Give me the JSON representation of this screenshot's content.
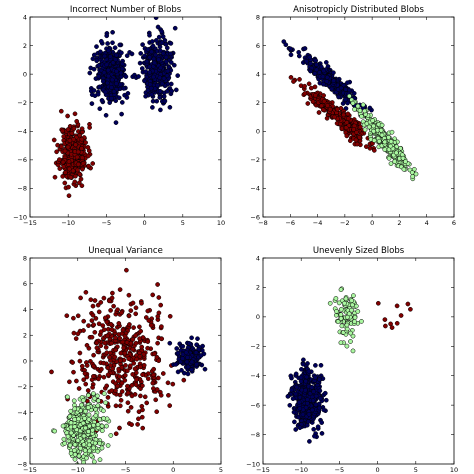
{
  "figure": {
    "background": "#ffffff"
  },
  "colors": {
    "red": "#800000",
    "blue": "#00005a",
    "green": "#aaf7a0",
    "edge": "#000000"
  },
  "chart_data": [
    {
      "type": "scatter",
      "title": "Incorrect Number of Blobs",
      "xlim": [
        -15,
        10
      ],
      "ylim": [
        -10,
        4
      ],
      "xticks": [
        -15,
        -10,
        -5,
        0,
        5,
        10
      ],
      "yticks": [
        -10,
        -8,
        -6,
        -4,
        -2,
        0,
        2,
        4
      ],
      "clusters": [
        {
          "color": "red",
          "count": 330,
          "center": [
            -9.3,
            -5.5
          ],
          "spread": [
            0.9,
            1.0
          ],
          "seed": 11
        },
        {
          "color": "blue",
          "count": 330,
          "center": [
            -4.4,
            0.0
          ],
          "spread": [
            1.0,
            1.1
          ],
          "seed": 12
        },
        {
          "color": "blue",
          "count": 330,
          "center": [
            1.8,
            0.3
          ],
          "spread": [
            1.0,
            1.1
          ],
          "seed": 13
        }
      ]
    },
    {
      "type": "scatter",
      "title": "Anisotropicly Distributed Blobs",
      "xlim": [
        -8,
        6
      ],
      "ylim": [
        -6,
        8
      ],
      "xticks": [
        -8,
        -6,
        -4,
        -2,
        0,
        2,
        4,
        6
      ],
      "yticks": [
        -6,
        -4,
        -2,
        0,
        2,
        4,
        6,
        8
      ],
      "clusters": [
        {
          "color": "blue",
          "count": 320,
          "center": [
            -3.0,
            3.5
          ],
          "axis": [
            1.2,
            -1.0
          ],
          "length": 0.9,
          "width": 0.25,
          "seed": 21
        },
        {
          "color": "red",
          "count": 320,
          "center": [
            -2.6,
            1.1
          ],
          "axis": [
            1.2,
            -1.0
          ],
          "length": 0.9,
          "width": 0.25,
          "seed": 22
        },
        {
          "color": "green",
          "count": 320,
          "center": [
            0.9,
            -0.6
          ],
          "axis": [
            1.2,
            -1.45
          ],
          "length": 0.85,
          "width": 0.25,
          "seed": 23
        }
      ]
    },
    {
      "type": "scatter",
      "title": "Unequal Variance",
      "xlim": [
        -15,
        5
      ],
      "ylim": [
        -8,
        8
      ],
      "xticks": [
        -15,
        -10,
        -5,
        0,
        5
      ],
      "yticks": [
        -8,
        -6,
        -4,
        -2,
        0,
        2,
        4,
        6,
        8
      ],
      "clusters": [
        {
          "color": "red",
          "count": 450,
          "center": [
            -5.5,
            0.3
          ],
          "spread": [
            2.4,
            2.3
          ],
          "seed": 31
        },
        {
          "color": "green",
          "count": 380,
          "center": [
            -9.5,
            -5.4
          ],
          "spread": [
            1.1,
            1.2
          ],
          "seed": 32
        },
        {
          "color": "blue",
          "count": 140,
          "center": [
            1.7,
            0.3
          ],
          "spread": [
            0.7,
            0.55
          ],
          "seed": 33
        }
      ]
    },
    {
      "type": "scatter",
      "title": "Unevenly Sized Blobs",
      "xlim": [
        -15,
        10
      ],
      "ylim": [
        -10,
        4
      ],
      "xticks": [
        -15,
        -10,
        -5,
        0,
        5,
        10
      ],
      "yticks": [
        -10,
        -8,
        -6,
        -4,
        -2,
        0,
        2,
        4
      ],
      "clusters": [
        {
          "color": "blue",
          "count": 480,
          "center": [
            -9.2,
            -5.6
          ],
          "spread": [
            0.95,
            1.0
          ],
          "seed": 41
        },
        {
          "color": "green",
          "count": 90,
          "center": [
            -4.2,
            0.1
          ],
          "spread": [
            0.85,
            0.9
          ],
          "seed": 42
        },
        {
          "color": "red",
          "count": 10,
          "center": [
            2.0,
            0.2
          ],
          "spread": [
            1.5,
            1.1
          ],
          "seed": 43
        }
      ]
    }
  ]
}
